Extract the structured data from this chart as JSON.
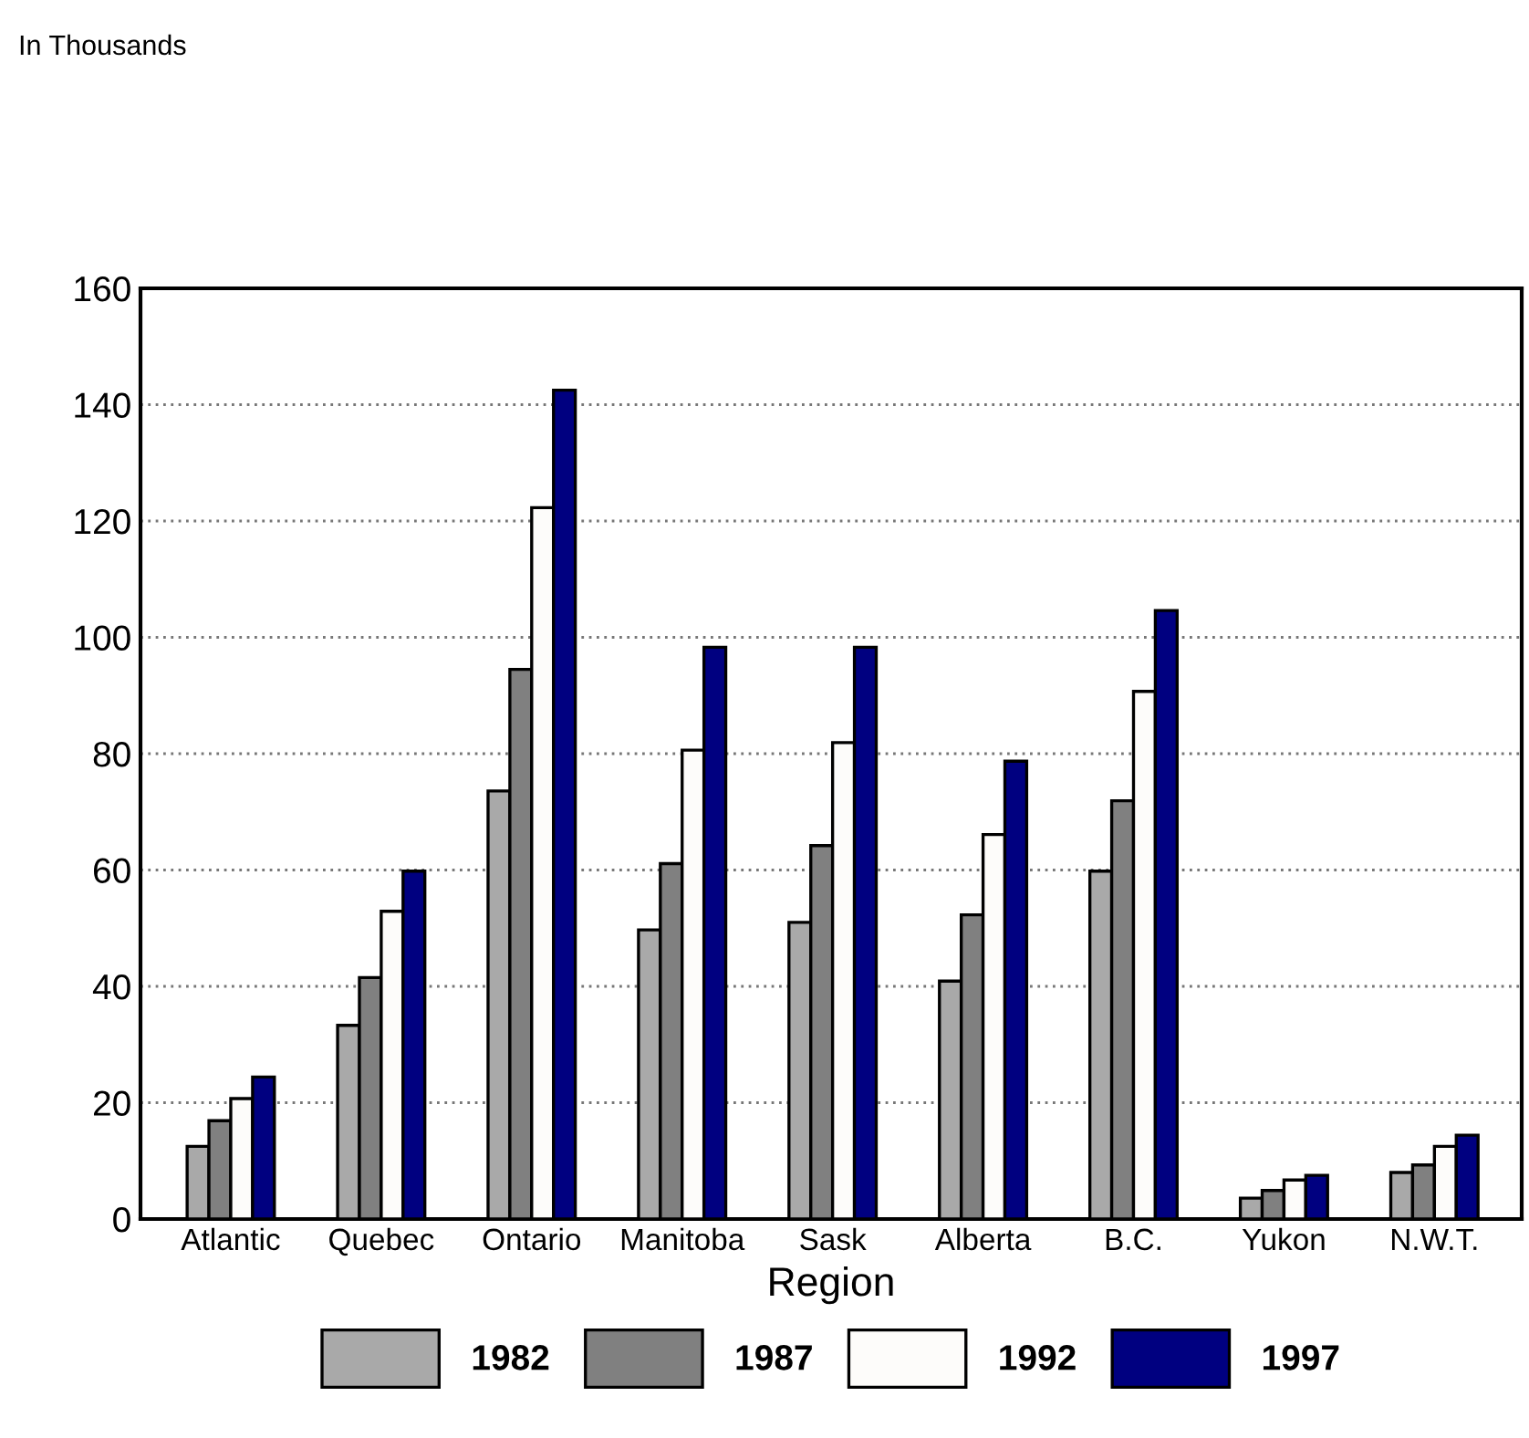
{
  "chart_data": {
    "type": "bar",
    "annotations": [
      "In Thousands"
    ],
    "xlabel": "Region",
    "categories": [
      "Atlantic",
      "Quebec",
      "Ontario",
      "Manitoba",
      "Sask",
      "Alberta",
      "B.C.",
      "Yukon",
      "N.W.T."
    ],
    "series": [
      {
        "name": "1982",
        "color": "#a9a9a9",
        "values": [
          12.5,
          33.3,
          73.6,
          49.7,
          51,
          40.9,
          59.8,
          3.6,
          8
        ]
      },
      {
        "name": "1987",
        "color": "#808080",
        "values": [
          16.9,
          41.5,
          94.5,
          61.1,
          64.2,
          52.3,
          71.9,
          4.9,
          9.3
        ]
      },
      {
        "name": "1992",
        "color": "#fdfcfa",
        "values": [
          20.7,
          52.9,
          122.3,
          80.6,
          81.9,
          66.1,
          90.7,
          6.7,
          12.5
        ]
      },
      {
        "name": "1997",
        "color": "#000080",
        "values": [
          24.4,
          59.8,
          142.5,
          98.3,
          98.3,
          78.7,
          104.6,
          7.5,
          14.4
        ]
      }
    ],
    "ylim": [
      0,
      160
    ],
    "yticks": [
      0,
      20,
      40,
      60,
      80,
      100,
      120,
      140,
      160
    ],
    "grid": "y",
    "legend": "bottom"
  }
}
